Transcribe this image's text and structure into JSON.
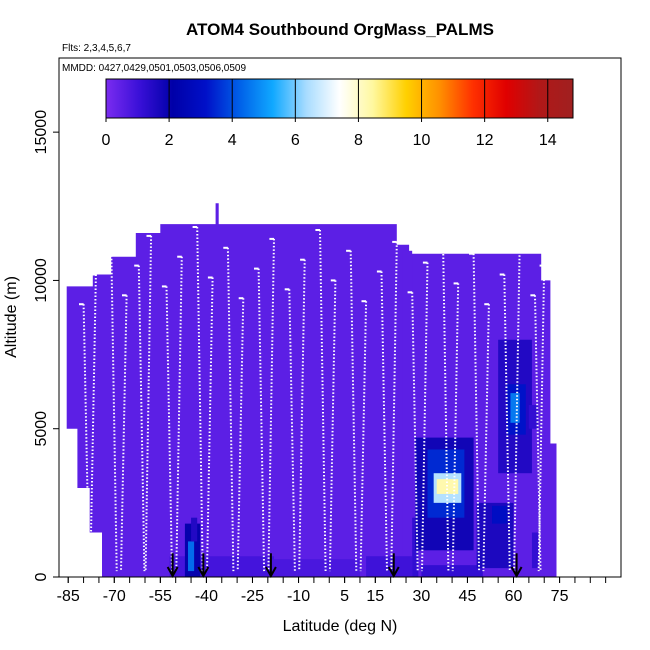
{
  "chart_data": {
    "type": "heatmap",
    "title": "ATOM4 Southbound OrgMass_PALMS",
    "annotations": {
      "flights": "Flts: 2,3,4,5,6,7",
      "dates": "MMDD: 0427,0429,0501,0503,0506,0509"
    },
    "xlabel": "Latitude (deg N)",
    "ylabel": "Altitude (m)",
    "xlim": [
      -88,
      95
    ],
    "ylim": [
      0,
      17500
    ],
    "x_ticks": [
      -85,
      -70,
      -55,
      -40,
      -25,
      -10,
      5,
      15,
      30,
      45,
      60,
      75
    ],
    "y_ticks": [
      0,
      5000,
      10000,
      15000
    ],
    "colorbar": {
      "ticks": [
        0,
        2,
        4,
        6,
        8,
        10,
        12,
        14
      ],
      "range": [
        0,
        14.8
      ],
      "colors": [
        "#7b2cf0",
        "#3a10d8",
        "#0000a8",
        "#0010c8",
        "#0060e8",
        "#10a8ff",
        "#a8dcff",
        "#ffffff",
        "#fff8a0",
        "#ffd000",
        "#ff9000",
        "#ff3000",
        "#e00000",
        "#b01818",
        "#a02020"
      ]
    },
    "background_value": 0.5,
    "cells": [
      {
        "lat": [
          -47,
          -42
        ],
        "alt": [
          0,
          1800
        ],
        "value": 2.0
      },
      {
        "lat": [
          -46,
          -44
        ],
        "alt": [
          200,
          1200
        ],
        "value": 4.4
      },
      {
        "lat": [
          -45,
          -43
        ],
        "alt": [
          1200,
          2000
        ],
        "value": 1.5
      },
      {
        "lat": [
          27,
          29
        ],
        "alt": [
          0,
          2000
        ],
        "value": 1.2
      },
      {
        "lat": [
          28,
          47
        ],
        "alt": [
          900,
          4700
        ],
        "value": 1.8
      },
      {
        "lat": [
          32,
          44
        ],
        "alt": [
          2000,
          4300
        ],
        "value": 3.5
      },
      {
        "lat": [
          34,
          43
        ],
        "alt": [
          2500,
          3500
        ],
        "value": 6.5
      },
      {
        "lat": [
          35,
          42
        ],
        "alt": [
          2800,
          3300
        ],
        "value": 8.3
      },
      {
        "lat": [
          48,
          60
        ],
        "alt": [
          300,
          2500
        ],
        "value": 1.6
      },
      {
        "lat": [
          53,
          58
        ],
        "alt": [
          1800,
          2400
        ],
        "value": 3.0
      },
      {
        "lat": [
          55,
          66
        ],
        "alt": [
          3500,
          8000
        ],
        "value": 1.5
      },
      {
        "lat": [
          58,
          64
        ],
        "alt": [
          4800,
          6500
        ],
        "value": 3.2
      },
      {
        "lat": [
          59,
          62
        ],
        "alt": [
          5200,
          6200
        ],
        "value": 4.6
      },
      {
        "lat": [
          66,
          68
        ],
        "alt": [
          300,
          1500
        ],
        "value": 1.2
      },
      {
        "lat": [
          65,
          68
        ],
        "alt": [
          5000,
          5800
        ],
        "value": 1.2
      }
    ],
    "sounding_latitudes": [
      -51,
      -41,
      -19,
      21,
      61
    ],
    "profile_latitudes": [
      -80,
      -76,
      -71,
      -66,
      -62,
      -58,
      -53,
      -48,
      -43,
      -38,
      -33,
      -28,
      -23,
      -18,
      -13,
      -8,
      -3,
      2,
      7,
      12,
      17,
      22,
      27,
      32,
      37,
      42,
      47,
      52,
      57,
      62,
      67,
      70
    ]
  }
}
